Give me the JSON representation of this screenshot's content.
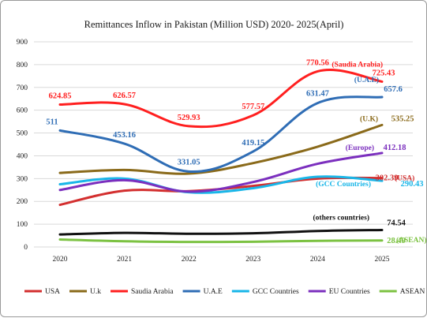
{
  "chart_data": {
    "type": "line",
    "title": "Remittances Inflow in Pakistan (Million USD) 2020- 2025(April)",
    "xlabel": "",
    "ylabel": "",
    "x": [
      "2020",
      "2021",
      "2022",
      "2023",
      "2024",
      "2025"
    ],
    "ylim": [
      0,
      900
    ],
    "yticks": [
      0,
      100,
      200,
      300,
      400,
      500,
      600,
      700,
      800,
      900
    ],
    "grid": true,
    "legend_position": "bottom",
    "series": [
      {
        "name": "USA",
        "color": "#d32f2f",
        "values": [
          185,
          247,
          245,
          268,
          300,
          302.39
        ]
      },
      {
        "name": "U.k",
        "color": "#8a6a1a",
        "values": [
          325,
          338,
          322,
          368,
          440,
          535.25
        ]
      },
      {
        "name": "Saudia Arabia",
        "color": "#ff1f1f",
        "values": [
          624.85,
          626.57,
          529.93,
          577.57,
          770.56,
          725.43
        ]
      },
      {
        "name": "U.A.E",
        "color": "#2f6db5",
        "values": [
          511,
          453.16,
          331.05,
          419.15,
          631.47,
          657.6
        ]
      },
      {
        "name": "GCC Countries",
        "color": "#19b6e8",
        "values": [
          275,
          300,
          240,
          258,
          308,
          290.43
        ]
      },
      {
        "name": "EU Countries",
        "color": "#7b2fbe",
        "values": [
          250,
          293,
          243,
          285,
          365,
          412.18
        ]
      },
      {
        "name": "ASEAN",
        "color": "#7cc242",
        "values": [
          33,
          25,
          22,
          23,
          27,
          28.49
        ]
      },
      {
        "name": "other countries",
        "color": "#111111",
        "values": [
          55,
          62,
          58,
          60,
          70,
          74.54
        ]
      }
    ],
    "data_labels": [
      {
        "text": "624.85",
        "x": "2020",
        "y": 624.85,
        "color": "#ff1f1f"
      },
      {
        "text": "626.57",
        "x": "2021",
        "y": 626.57,
        "color": "#ff1f1f"
      },
      {
        "text": "529.93",
        "x": "2022",
        "y": 529.93,
        "color": "#ff1f1f"
      },
      {
        "text": "577.57",
        "x": "2023",
        "y": 577.57,
        "color": "#ff1f1f"
      },
      {
        "text": "770.56",
        "x": "2024",
        "y": 770.56,
        "color": "#ff1f1f"
      },
      {
        "text": "725.43",
        "x": "2025",
        "y": 725.43,
        "color": "#ff1f1f"
      },
      {
        "text": "511",
        "x": "2020",
        "y": 511,
        "color": "#2f6db5"
      },
      {
        "text": "453.16",
        "x": "2021",
        "y": 453.16,
        "color": "#2f6db5"
      },
      {
        "text": "331.05",
        "x": "2022",
        "y": 331.05,
        "color": "#2f6db5"
      },
      {
        "text": "419.15",
        "x": "2023",
        "y": 419.15,
        "color": "#2f6db5"
      },
      {
        "text": "631.47",
        "x": "2024",
        "y": 631.47,
        "color": "#2f6db5"
      },
      {
        "text": "657.6",
        "x": "2025",
        "y": 657.6,
        "color": "#2f6db5"
      },
      {
        "text": "535.25",
        "x": "2025",
        "y": 535.25,
        "color": "#8a6a1a"
      },
      {
        "text": "412.18",
        "x": "2025",
        "y": 412.18,
        "color": "#7b2fbe"
      },
      {
        "text": "302.39",
        "x": "2025",
        "y": 302.39,
        "color": "#d32f2f"
      },
      {
        "text": "290.43",
        "x": "2025",
        "y": 290.43,
        "color": "#19b6e8"
      },
      {
        "text": "74.54",
        "x": "2025",
        "y": 74.54,
        "color": "#111111"
      },
      {
        "text": "28.49",
        "x": "2025",
        "y": 28.49,
        "color": "#7cc242"
      }
    ],
    "annotations": [
      {
        "text": "(Saudia Arabia)",
        "color": "#ff1f1f"
      },
      {
        "text": "(U.A.E)",
        "color": "#2f6db5"
      },
      {
        "text": "(U.K)",
        "color": "#8a6a1a"
      },
      {
        "text": "(Europe)",
        "color": "#7b2fbe"
      },
      {
        "text": "(USA)",
        "color": "#d32f2f"
      },
      {
        "text": "(GCC Countries)",
        "color": "#19b6e8"
      },
      {
        "text": "(others countries)",
        "color": "#111111"
      },
      {
        "text": "(ASEAN)",
        "color": "#7cc242"
      }
    ]
  }
}
